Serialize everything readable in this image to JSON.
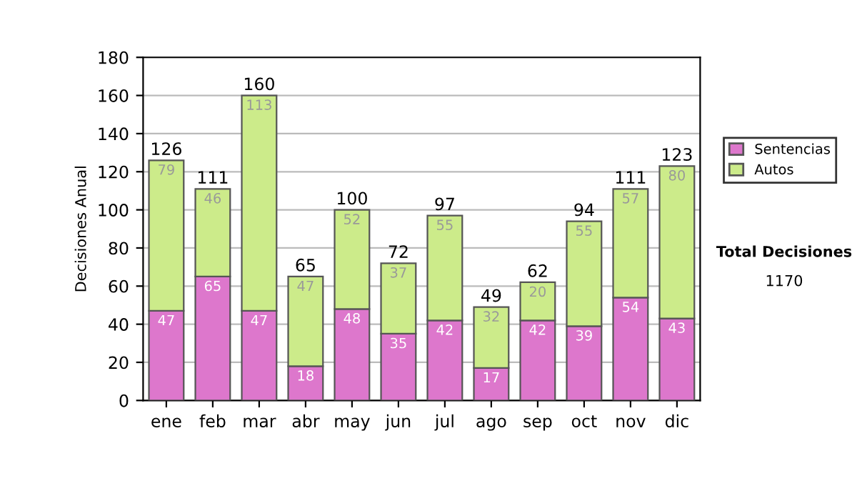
{
  "chart_data": {
    "type": "bar",
    "stacked": true,
    "ylabel": "Decisiones Anual",
    "categories": [
      "ene",
      "feb",
      "mar",
      "abr",
      "may",
      "jun",
      "jul",
      "ago",
      "sep",
      "oct",
      "nov",
      "dic"
    ],
    "series": [
      {
        "name": "Sentencias",
        "color": "#dd77cc",
        "values": [
          47,
          65,
          47,
          18,
          48,
          35,
          42,
          17,
          42,
          39,
          54,
          43
        ]
      },
      {
        "name": "Autos",
        "color": "#cceb8a",
        "values": [
          79,
          46,
          113,
          47,
          52,
          37,
          55,
          32,
          20,
          55,
          57,
          80
        ]
      }
    ],
    "ylim": [
      0,
      180
    ],
    "yticks": [
      0,
      20,
      40,
      60,
      80,
      100,
      120,
      140,
      160,
      180
    ],
    "grid": "y",
    "legend": "right",
    "data_labels": true,
    "totals": [
      "126",
      "111",
      "160",
      "65",
      "100",
      "72",
      "97",
      "49",
      "62",
      "94",
      "111",
      "123"
    ],
    "annotations": [
      "Total Decisiones",
      "1170"
    ]
  }
}
